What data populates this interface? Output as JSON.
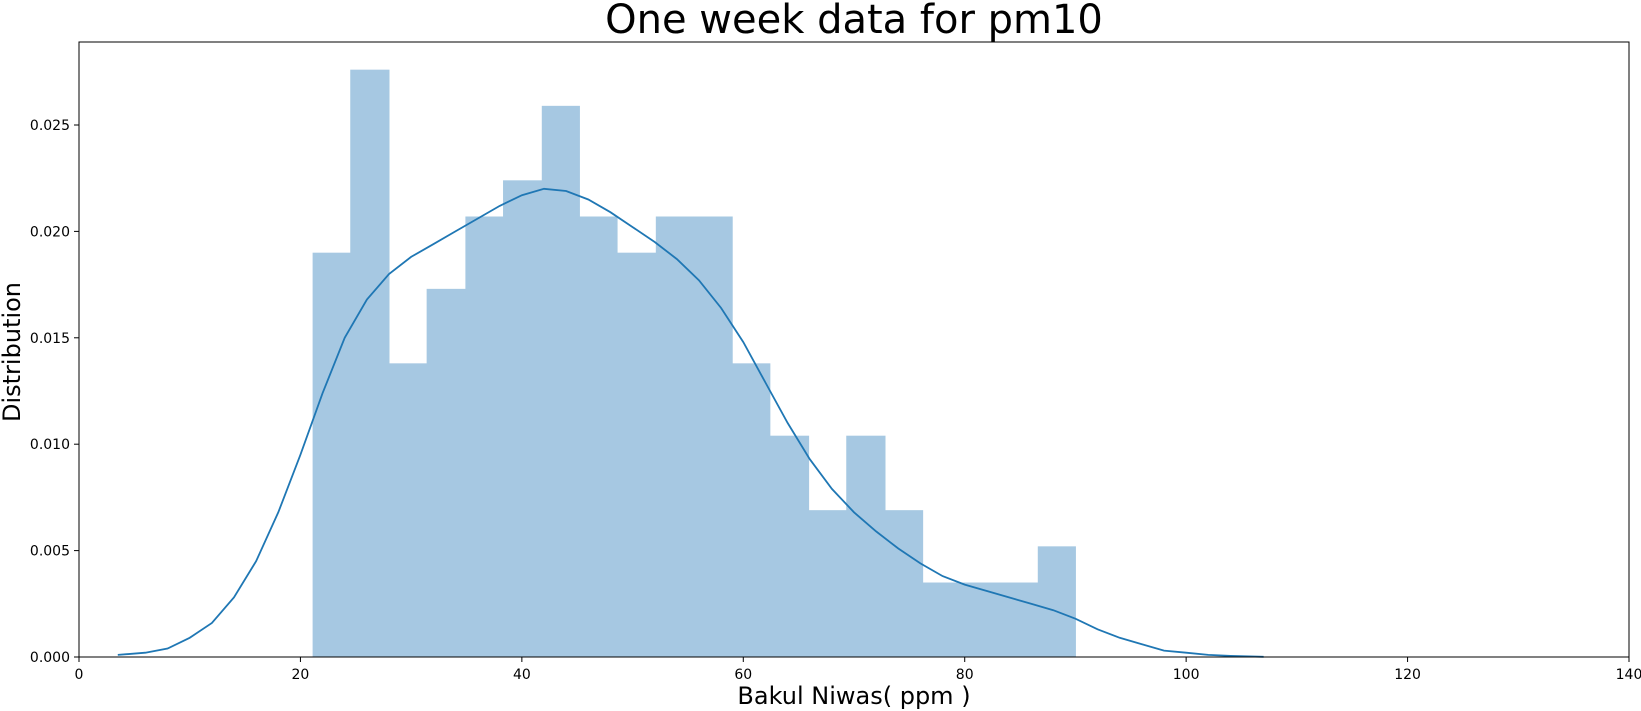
{
  "chart_data": {
    "type": "bar",
    "subtype": "histogram-with-kde",
    "title": "One week data for pm10",
    "xlabel": "Bakul Niwas( ppm )",
    "ylabel": "Distribution",
    "xlim": [
      0,
      140
    ],
    "ylim": [
      0,
      0.0289
    ],
    "xticks": [
      0,
      20,
      40,
      60,
      80,
      100,
      120,
      140
    ],
    "xtick_labels": [
      "0",
      "20",
      "40",
      "60",
      "80",
      "100",
      "120",
      "140"
    ],
    "yticks": [
      0,
      0.005,
      0.01,
      0.015,
      0.02,
      0.025
    ],
    "ytick_labels": [
      "0.000",
      "0.005",
      "0.010",
      "0.015",
      "0.020",
      "0.025"
    ],
    "grid": false,
    "bar_color": "#a6c8e2",
    "line_color": "#1f77b4",
    "bins": [
      {
        "x0": 21.1,
        "x1": 24.5,
        "value": 0.019
      },
      {
        "x0": 24.5,
        "x1": 28.0,
        "value": 0.0276
      },
      {
        "x0": 28.0,
        "x1": 31.4,
        "value": 0.0138
      },
      {
        "x0": 31.4,
        "x1": 34.9,
        "value": 0.0173
      },
      {
        "x0": 34.9,
        "x1": 38.3,
        "value": 0.0207
      },
      {
        "x0": 38.3,
        "x1": 41.8,
        "value": 0.0224
      },
      {
        "x0": 41.8,
        "x1": 45.2,
        "value": 0.0259
      },
      {
        "x0": 45.2,
        "x1": 48.6,
        "value": 0.0207
      },
      {
        "x0": 48.6,
        "x1": 52.1,
        "value": 0.019
      },
      {
        "x0": 52.1,
        "x1": 55.5,
        "value": 0.0207
      },
      {
        "x0": 55.5,
        "x1": 59.0,
        "value": 0.0207
      },
      {
        "x0": 59.0,
        "x1": 62.4,
        "value": 0.0138
      },
      {
        "x0": 62.4,
        "x1": 65.9,
        "value": 0.0104
      },
      {
        "x0": 65.9,
        "x1": 69.3,
        "value": 0.0069
      },
      {
        "x0": 69.3,
        "x1": 72.8,
        "value": 0.0104
      },
      {
        "x0": 72.8,
        "x1": 76.2,
        "value": 0.0069
      },
      {
        "x0": 76.2,
        "x1": 79.7,
        "value": 0.0035
      },
      {
        "x0": 79.7,
        "x1": 83.1,
        "value": 0.0035
      },
      {
        "x0": 83.1,
        "x1": 86.6,
        "value": 0.0035
      },
      {
        "x0": 86.6,
        "x1": 90.0,
        "value": 0.0052
      }
    ],
    "kde": {
      "x": [
        3.5,
        6,
        8,
        10,
        12,
        14,
        16,
        18,
        20,
        22,
        24,
        26,
        28,
        30,
        32,
        34,
        36,
        38,
        40,
        42,
        44,
        46,
        48,
        50,
        52,
        54,
        56,
        58,
        60,
        62,
        64,
        66,
        68,
        70,
        72,
        74,
        76,
        78,
        80,
        82,
        84,
        86,
        88,
        90,
        92,
        94,
        96,
        98,
        100,
        102,
        104,
        107
      ],
      "y": [
        0.0001,
        0.0002,
        0.0004,
        0.0009,
        0.0016,
        0.0028,
        0.0045,
        0.0068,
        0.0095,
        0.0124,
        0.015,
        0.0168,
        0.018,
        0.0188,
        0.0194,
        0.02,
        0.0206,
        0.0212,
        0.0217,
        0.022,
        0.0219,
        0.0215,
        0.0209,
        0.0202,
        0.0195,
        0.0187,
        0.0177,
        0.0164,
        0.0148,
        0.0129,
        0.011,
        0.0093,
        0.0079,
        0.0068,
        0.0059,
        0.0051,
        0.0044,
        0.0038,
        0.0034,
        0.0031,
        0.0028,
        0.0025,
        0.0022,
        0.0018,
        0.0013,
        0.0009,
        0.0006,
        0.0003,
        0.0002,
        0.0001,
        5e-05,
        1e-05
      ]
    }
  }
}
